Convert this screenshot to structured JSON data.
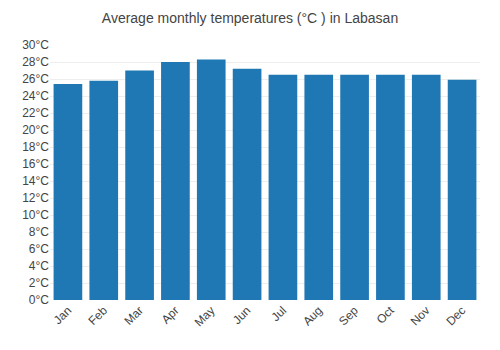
{
  "chart_data": {
    "type": "bar",
    "title": "Average monthly temperatures (°C ) in Labasan",
    "categories": [
      "Jan",
      "Feb",
      "Mar",
      "Apr",
      "May",
      "Jun",
      "Jul",
      "Aug",
      "Sep",
      "Oct",
      "Nov",
      "Dec"
    ],
    "values": [
      25.4,
      25.8,
      27.0,
      28.0,
      28.3,
      27.2,
      26.5,
      26.5,
      26.5,
      26.5,
      26.5,
      25.9
    ],
    "ylim": [
      0,
      30
    ],
    "yticks": [
      {
        "value": 0,
        "label": "0°C"
      },
      {
        "value": 2,
        "label": "2°C"
      },
      {
        "value": 4,
        "label": "4°C"
      },
      {
        "value": 6,
        "label": "6°C"
      },
      {
        "value": 8,
        "label": "8°C"
      },
      {
        "value": 10,
        "label": "10°C"
      },
      {
        "value": 12,
        "label": "12°C"
      },
      {
        "value": 14,
        "label": "14°C"
      },
      {
        "value": 16,
        "label": "16°C"
      },
      {
        "value": 18,
        "label": "18°C"
      },
      {
        "value": 20,
        "label": "20°C"
      },
      {
        "value": 22,
        "label": "22°C"
      },
      {
        "value": 24,
        "label": "24°C"
      },
      {
        "value": 26,
        "label": "26°C"
      },
      {
        "value": 28,
        "label": "28°C"
      },
      {
        "value": 30,
        "label": "30°C"
      }
    ],
    "grid": true
  }
}
